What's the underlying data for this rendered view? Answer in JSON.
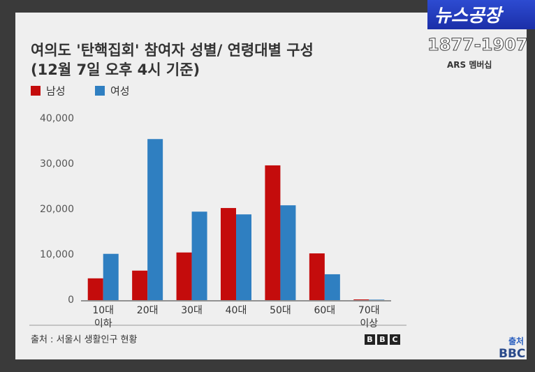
{
  "chart_data": {
    "type": "bar",
    "title": "여의도 '탄핵집회' 참여자 성별/ 연령대별 구성",
    "subtitle": "(12월 7일 오후 4시 기준)",
    "categories": [
      "10대\n이하",
      "20대",
      "30대",
      "40대",
      "50대",
      "60대",
      "70대\n이상"
    ],
    "series": [
      {
        "name": "남성",
        "color": "#c40c0c",
        "values": [
          4800,
          6500,
          10500,
          20300,
          29700,
          10300,
          150
        ]
      },
      {
        "name": "여성",
        "color": "#2f7fc1",
        "values": [
          10200,
          35500,
          19500,
          18900,
          20900,
          5700,
          100
        ]
      }
    ],
    "ylim": [
      0,
      40000
    ],
    "yticks": [
      0,
      {
        "value": 10000,
        "label": "10,000"
      },
      {
        "value": 20000,
        "label": "20,000"
      },
      {
        "value": 30000,
        "label": "30,000"
      },
      {
        "value": 40000,
        "label": "40,000"
      }
    ],
    "grid": false,
    "legend": "top-left",
    "source": "출처 : 서울시 생활인구 현황",
    "logo": [
      "B",
      "B",
      "C"
    ]
  },
  "overlay": {
    "banner": "뉴스공장",
    "phone": "1877-1907",
    "ars": "ARS 멤버십",
    "source_label": "출처",
    "source_name": "BBC"
  }
}
